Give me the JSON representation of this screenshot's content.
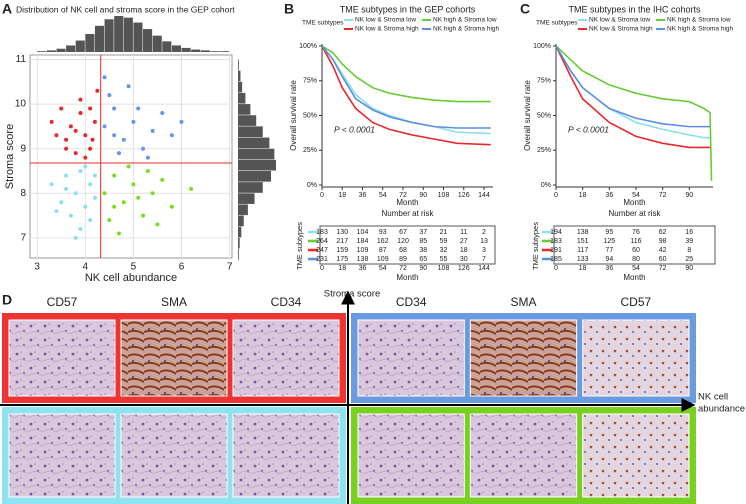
{
  "panel_labels": [
    "A",
    "B",
    "C",
    "D"
  ],
  "chart_data": [
    {
      "type": "scatter",
      "title": "Distribution of NK cell and stroma score in the GEP cohort",
      "xlabel": "NK cell abundance",
      "ylabel": "Stroma score",
      "xlim": [
        2.85,
        7.05
      ],
      "ylim": [
        6.55,
        11.1
      ],
      "xticks": [
        3,
        4,
        5,
        6,
        7
      ],
      "yticks": [
        7,
        8,
        9,
        10,
        11
      ],
      "grid": true,
      "cutoffs": {
        "x": 4.32,
        "y": 8.68,
        "color": "#e8282b"
      },
      "series": [
        {
          "color": "#e8282b",
          "x": [
            3.3,
            3.5,
            3.6,
            3.7,
            3.8,
            3.9,
            4.0,
            4.1,
            4.2,
            3.9,
            4.0,
            3.6,
            4.25,
            3.8,
            4.1,
            3.4,
            4.15
          ],
          "y": [
            9.6,
            9.9,
            9.2,
            9.5,
            8.9,
            9.8,
            9.3,
            9.0,
            9.6,
            10.1,
            8.8,
            9.0,
            10.3,
            9.4,
            9.9,
            9.3,
            9.2
          ]
        },
        {
          "color": "#6495ed",
          "x": [
            4.4,
            4.6,
            4.8,
            5.0,
            5.2,
            5.4,
            4.5,
            4.9,
            5.6,
            4.7,
            5.1,
            5.8,
            4.4,
            5.3,
            4.6,
            6.0
          ],
          "y": [
            9.5,
            9.9,
            9.2,
            9.6,
            9.0,
            9.4,
            10.2,
            10.4,
            9.8,
            8.9,
            9.9,
            9.3,
            10.6,
            8.8,
            9.3,
            9.6
          ]
        },
        {
          "color": "#8be0ea",
          "x": [
            3.3,
            3.5,
            3.6,
            3.7,
            3.8,
            3.9,
            4.0,
            4.1,
            4.2,
            3.9,
            4.0,
            3.6,
            4.2,
            3.8,
            4.1,
            3.4
          ],
          "y": [
            8.2,
            7.8,
            8.4,
            7.5,
            8.0,
            8.5,
            7.7,
            8.2,
            7.9,
            7.2,
            8.6,
            8.1,
            8.4,
            7.0,
            7.4,
            7.6
          ]
        },
        {
          "color": "#77dd22",
          "x": [
            4.4,
            4.6,
            4.8,
            5.0,
            5.2,
            5.4,
            4.5,
            4.9,
            5.6,
            4.7,
            5.1,
            5.8,
            6.2,
            5.3,
            4.6,
            5.5
          ],
          "y": [
            8.0,
            8.4,
            7.8,
            8.2,
            7.5,
            8.0,
            7.4,
            8.6,
            8.3,
            7.1,
            7.9,
            7.7,
            8.1,
            8.5,
            7.7,
            7.3
          ]
        }
      ],
      "x_hist": {
        "color": "#555555",
        "bins": [
          3.0,
          3.2,
          3.4,
          3.6,
          3.8,
          4.0,
          4.2,
          4.4,
          4.6,
          4.8,
          5.0,
          5.2,
          5.4,
          5.6,
          5.8,
          6.0,
          6.2,
          6.4,
          6.6,
          6.8,
          7.0
        ],
        "counts": [
          1,
          2,
          4,
          8,
          14,
          22,
          32,
          40,
          44,
          42,
          36,
          28,
          20,
          13,
          8,
          5,
          3,
          2,
          1,
          1
        ]
      },
      "y_hist": {
        "color": "#555555",
        "bins": [
          6.5,
          6.75,
          7.0,
          7.25,
          7.5,
          7.75,
          8.0,
          8.25,
          8.5,
          8.75,
          9.0,
          9.25,
          9.5,
          9.75,
          10.0,
          10.25,
          10.5,
          10.75,
          11.0
        ],
        "counts": [
          1,
          2,
          4,
          7,
          12,
          20,
          30,
          40,
          46,
          44,
          38,
          30,
          22,
          15,
          9,
          5,
          3,
          1
        ]
      }
    },
    {
      "type": "line",
      "title": "TME subtypes in the GEP cohorts",
      "legend_title": "TME subtypes",
      "xlabel": "Month",
      "ylabel": "Overall survival rate",
      "annotation": "P < 0.0001",
      "xlim": [
        0,
        152
      ],
      "ylim": [
        0,
        100
      ],
      "xticks": [
        0,
        18,
        36,
        54,
        72,
        90,
        108,
        126,
        144
      ],
      "yticks": [
        {
          "value": 0,
          "label": "0%"
        },
        {
          "value": 25,
          "label": "25%"
        },
        {
          "value": 50,
          "label": "50%"
        },
        {
          "value": 75,
          "label": "75%"
        },
        {
          "value": 100,
          "label": "100%"
        }
      ],
      "x": [
        0,
        10,
        18,
        30,
        45,
        60,
        80,
        100,
        120,
        150
      ],
      "risk_table": {
        "title": "Number at risk",
        "ylabel": "TME subtypes"
      },
      "series": [
        {
          "name": "NK low & Stroma low",
          "color": "#8be0ea",
          "values": [
            100,
            90,
            80,
            65,
            55,
            50,
            45,
            42,
            38,
            37
          ],
          "at_risk": [
            183,
            130,
            104,
            93,
            67,
            37,
            21,
            11,
            2
          ]
        },
        {
          "name": "NK high & Stroma low",
          "color": "#66cc33",
          "values": [
            100,
            95,
            87,
            78,
            70,
            66,
            63,
            61,
            60,
            60
          ],
          "at_risk": [
            264,
            217,
            184,
            162,
            120,
            85,
            59,
            27,
            13
          ]
        },
        {
          "name": "NK low & Stroma high",
          "color": "#e8282b",
          "values": [
            100,
            85,
            70,
            55,
            45,
            40,
            36,
            33,
            30,
            29
          ],
          "at_risk": [
            247,
            159,
            109,
            87,
            68,
            38,
            32,
            18,
            3
          ]
        },
        {
          "name": "NK high & Stroma high",
          "color": "#5b8fe0",
          "values": [
            100,
            90,
            78,
            62,
            54,
            49,
            45,
            42,
            41,
            41
          ],
          "at_risk": [
            231,
            175,
            138,
            109,
            89,
            65,
            55,
            30,
            7
          ]
        }
      ]
    },
    {
      "type": "line",
      "title": "TME subtypes in the IHC cohorts",
      "legend_title": "TME subtypes",
      "xlabel": "Month",
      "ylabel": "Overall survival rate",
      "annotation": "P < 0.0001",
      "xlim": [
        0,
        106
      ],
      "ylim": [
        0,
        100
      ],
      "xticks": [
        0,
        18,
        36,
        54,
        72,
        90
      ],
      "yticks": [
        {
          "value": 0,
          "label": "0%"
        },
        {
          "value": 25,
          "label": "25%"
        },
        {
          "value": 50,
          "label": "50%"
        },
        {
          "value": 75,
          "label": "75%"
        },
        {
          "value": 100,
          "label": "100%"
        }
      ],
      "x": [
        0,
        10,
        18,
        36,
        54,
        72,
        90,
        100,
        104,
        105
      ],
      "risk_table": {
        "title": "Number at risk",
        "ylabel": "TME subtypes"
      },
      "series": [
        {
          "name": "NK low & Stroma low",
          "color": "#8be0ea",
          "values": [
            100,
            82,
            70,
            55,
            45,
            40,
            36,
            34,
            34,
            null
          ],
          "at_risk": [
            194,
            138,
            95,
            76,
            62,
            16
          ]
        },
        {
          "name": "NK high & Stroma low",
          "color": "#66cc33",
          "values": [
            100,
            90,
            82,
            72,
            66,
            62,
            60,
            55,
            52,
            3
          ],
          "at_risk": [
            183,
            151,
            125,
            116,
            98,
            39
          ]
        },
        {
          "name": "NK low & Stroma high",
          "color": "#e8282b",
          "values": [
            100,
            78,
            62,
            45,
            35,
            30,
            27,
            27,
            27,
            null
          ],
          "at_risk": [
            191,
            117,
            77,
            60,
            42,
            8
          ]
        },
        {
          "name": "NK high & Stroma high",
          "color": "#5b8fe0",
          "values": [
            100,
            82,
            70,
            55,
            48,
            44,
            42,
            42,
            42,
            null
          ],
          "at_risk": [
            185,
            133,
            94,
            80,
            60,
            25
          ]
        }
      ]
    }
  ],
  "panel_d": {
    "y_axis_label": "Stroma score",
    "x_axis_label": [
      "NK cell",
      "abundance"
    ],
    "quadrants": [
      {
        "color": "#ee3333",
        "stains": [
          "CD57",
          "SMA",
          "CD34"
        ]
      },
      {
        "color": "#6a9be0",
        "stains": [
          "CD34",
          "SMA",
          "CD57"
        ]
      },
      {
        "color": "#8fe3ee"
      },
      {
        "color": "#77d11e"
      }
    ]
  }
}
